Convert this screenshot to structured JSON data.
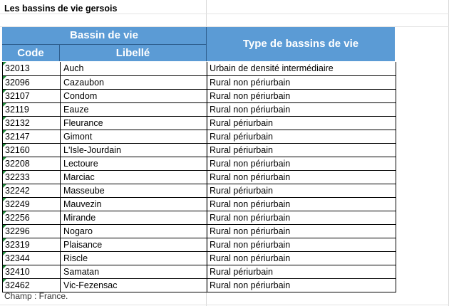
{
  "title": "Les bassins de vie gersois",
  "header": {
    "group_label": "Bassin de vie",
    "code_label": "Code",
    "libelle_label": "Libellé",
    "type_label": "Type de bassins de vie",
    "color": "#5b9bd5"
  },
  "rows": [
    {
      "code": "32013",
      "libelle": "Auch",
      "type": "Urbain de densité intermédiaire"
    },
    {
      "code": "32096",
      "libelle": "Cazaubon",
      "type": "Rural non périurbain"
    },
    {
      "code": "32107",
      "libelle": "Condom",
      "type": "Rural non périurbain"
    },
    {
      "code": "32119",
      "libelle": "Eauze",
      "type": "Rural non périurbain"
    },
    {
      "code": "32132",
      "libelle": "Fleurance",
      "type": "Rural périurbain"
    },
    {
      "code": "32147",
      "libelle": "Gimont",
      "type": "Rural périurbain"
    },
    {
      "code": "32160",
      "libelle": "L'Isle-Jourdain",
      "type": "Rural périurbain"
    },
    {
      "code": "32208",
      "libelle": "Lectoure",
      "type": "Rural non périurbain"
    },
    {
      "code": "32233",
      "libelle": "Marciac",
      "type": "Rural non périurbain"
    },
    {
      "code": "32242",
      "libelle": "Masseube",
      "type": "Rural périurbain"
    },
    {
      "code": "32249",
      "libelle": "Mauvezin",
      "type": "Rural non périurbain"
    },
    {
      "code": "32256",
      "libelle": "Mirande",
      "type": "Rural non périurbain"
    },
    {
      "code": "32296",
      "libelle": "Nogaro",
      "type": "Rural non périurbain"
    },
    {
      "code": "32319",
      "libelle": "Plaisance",
      "type": "Rural non périurbain"
    },
    {
      "code": "32344",
      "libelle": "Riscle",
      "type": "Rural non périurbain"
    },
    {
      "code": "32410",
      "libelle": "Samatan",
      "type": "Rural périurbain"
    },
    {
      "code": "32462",
      "libelle": "Vic-Fezensac",
      "type": "Rural non périurbain"
    }
  ],
  "source": "Champ : France."
}
